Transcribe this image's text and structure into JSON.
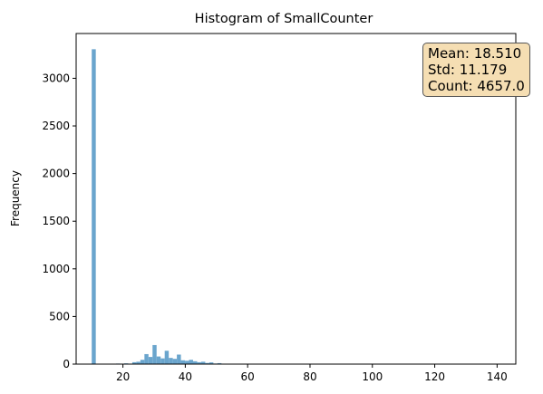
{
  "chart_data": {
    "type": "bar",
    "title": "Histogram of SmallCounter",
    "xlabel": "",
    "ylabel": "Frequency",
    "xlim": [
      5,
      146
    ],
    "ylim": [
      0,
      3470
    ],
    "xticks": [
      20,
      40,
      60,
      80,
      100,
      120,
      140
    ],
    "yticks": [
      0,
      500,
      1000,
      1500,
      2000,
      2500,
      3000
    ],
    "bar_color": "#6aa5cd",
    "grid": false,
    "bins": [
      {
        "x0": 10.0,
        "x1": 11.3,
        "count": 3305
      },
      {
        "x0": 17.8,
        "x1": 19.1,
        "count": 6
      },
      {
        "x0": 20.4,
        "x1": 21.7,
        "count": 8
      },
      {
        "x0": 23.0,
        "x1": 24.3,
        "count": 20
      },
      {
        "x0": 24.3,
        "x1": 25.6,
        "count": 25
      },
      {
        "x0": 25.6,
        "x1": 26.9,
        "count": 45
      },
      {
        "x0": 26.9,
        "x1": 28.2,
        "count": 105
      },
      {
        "x0": 28.2,
        "x1": 29.5,
        "count": 75
      },
      {
        "x0": 29.5,
        "x1": 30.8,
        "count": 200
      },
      {
        "x0": 30.8,
        "x1": 32.1,
        "count": 80
      },
      {
        "x0": 32.1,
        "x1": 33.4,
        "count": 60
      },
      {
        "x0": 33.4,
        "x1": 34.7,
        "count": 140
      },
      {
        "x0": 34.7,
        "x1": 36.0,
        "count": 65
      },
      {
        "x0": 36.0,
        "x1": 37.3,
        "count": 55
      },
      {
        "x0": 37.3,
        "x1": 38.6,
        "count": 100
      },
      {
        "x0": 38.6,
        "x1": 39.9,
        "count": 40
      },
      {
        "x0": 39.9,
        "x1": 41.2,
        "count": 35
      },
      {
        "x0": 41.2,
        "x1": 42.5,
        "count": 45
      },
      {
        "x0": 42.5,
        "x1": 43.8,
        "count": 30
      },
      {
        "x0": 43.8,
        "x1": 45.1,
        "count": 20
      },
      {
        "x0": 45.1,
        "x1": 46.4,
        "count": 25
      },
      {
        "x0": 46.4,
        "x1": 47.7,
        "count": 12
      },
      {
        "x0": 47.7,
        "x1": 49.0,
        "count": 18
      },
      {
        "x0": 49.0,
        "x1": 50.3,
        "count": 6
      },
      {
        "x0": 50.3,
        "x1": 51.6,
        "count": 10
      },
      {
        "x0": 51.6,
        "x1": 52.9,
        "count": 4
      },
      {
        "x0": 54.2,
        "x1": 55.5,
        "count": 3
      },
      {
        "x0": 58.1,
        "x1": 59.4,
        "count": 2
      }
    ],
    "stats": {
      "mean": "Mean: 18.510",
      "std": "Std: 11.179",
      "count": "Count: 4657.0"
    }
  }
}
